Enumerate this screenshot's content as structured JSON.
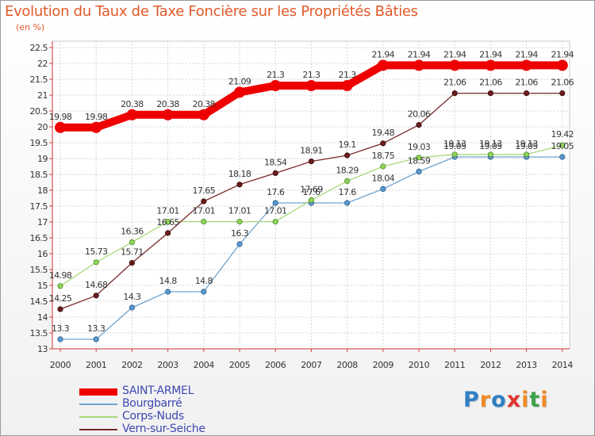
{
  "title": "Evolution du Taux de Taxe Foncière sur les Propriétés Bâties",
  "unit_label": "(en %)",
  "logo": {
    "text": "Proxiti",
    "letters": [
      "P",
      "r",
      "o",
      "x",
      "i",
      "t",
      "i"
    ],
    "colors": [
      "#2e7fc4",
      "#f08a24",
      "#2e7fc4",
      "#e3342f",
      "#f08a24",
      "#3aa34a",
      "#f08a24"
    ]
  },
  "chart_data": {
    "type": "line",
    "title": "Evolution du Taux de Taxe Foncière sur les Propriétés Bâties",
    "ylabel": "(en %)",
    "xlabel": "",
    "ylim": [
      13,
      22.5
    ],
    "ytick_step": 0.5,
    "x": [
      "2000",
      "2001",
      "2002",
      "2003",
      "2004",
      "2005",
      "2006",
      "2007",
      "2008",
      "2009",
      "2010",
      "2011",
      "2012",
      "2013",
      "2014"
    ],
    "grid": true,
    "legend_position": "bottom-left",
    "series": [
      {
        "name": "SAINT-ARMEL",
        "color": "#ee0000",
        "values": [
          19.98,
          19.98,
          20.38,
          20.38,
          20.38,
          21.09,
          21.3,
          21.3,
          21.3,
          21.94,
          21.94,
          21.94,
          21.94,
          21.94,
          21.94
        ]
      },
      {
        "name": "Bourgbarré",
        "color": "#6fa3cf",
        "values": [
          13.3,
          13.3,
          14.3,
          14.8,
          14.8,
          16.3,
          17.6,
          17.6,
          17.6,
          18.04,
          18.59,
          19.05,
          19.05,
          19.05,
          19.05
        ]
      },
      {
        "name": "Corps-Nuds",
        "color": "#a6d97b",
        "values": [
          14.98,
          15.73,
          16.36,
          17.01,
          17.01,
          17.01,
          17.01,
          17.69,
          18.29,
          18.75,
          19.03,
          19.13,
          19.13,
          19.13,
          19.42
        ]
      },
      {
        "name": "Vern-sur-Seiche",
        "color": "#7a2a2a",
        "values": [
          14.25,
          14.68,
          15.71,
          16.65,
          17.65,
          18.18,
          18.54,
          18.91,
          19.1,
          19.48,
          20.06,
          21.06,
          21.06,
          21.06,
          21.06
        ]
      }
    ],
    "point_labels": [
      [
        "19.98",
        "19.98",
        "20.38",
        "20.38",
        "20.38",
        "21.09",
        "21.3",
        "21.3",
        "21.3",
        "21.94",
        "21.94",
        "21.94",
        "21.94",
        "21.94",
        "21.94"
      ],
      [
        "13.3",
        "13.3",
        "14.3",
        "14.8",
        "14.8",
        "16.3",
        "17.6",
        "17.6",
        "17.6",
        "18.04",
        "18.59",
        "19.05",
        "19.05",
        "19.05",
        "19.05"
      ],
      [
        "14.98",
        "15.73",
        "16.36",
        "17.01",
        "17.01",
        "17.01",
        "17.01",
        "17.69",
        "18.29",
        "18.75",
        "19.03",
        "19.13",
        "19.13",
        "19.13",
        "19.42"
      ],
      [
        "14.25",
        "14.68",
        "15.71",
        "16.65",
        "17.65",
        "18.18",
        "18.54",
        "18.91",
        "19.1",
        "19.48",
        "20.06",
        "21.06",
        "21.06",
        "21.06",
        "21.06"
      ]
    ]
  }
}
